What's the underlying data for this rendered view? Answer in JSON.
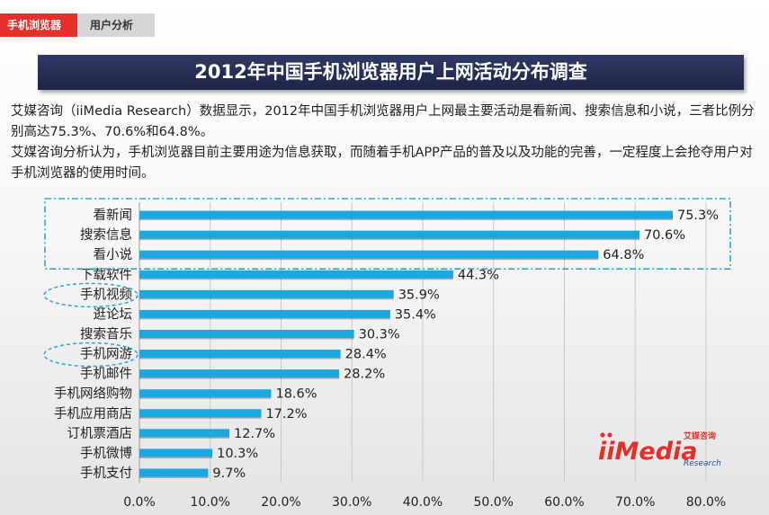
{
  "tabs": [
    "手机浏览器",
    "用户分析"
  ],
  "title": "2012年中国手机浏览器用户上网活动分布调查",
  "description": [
    "艾媒咨询（iiMedia Research）数据显示，2012年中国手机浏览器用户上网最主要活动是看新闻、搜索信息和小说，三者比例分别高达75.3%、70.6%和64.8%。",
    "艾媒咨询分析认为，手机浏览器目前主要用途为信息获取，而随着手机APP产品的普及以及功能的完善，一定程度上会抢夺用户对手机浏览器的使用时间。"
  ],
  "logo": {
    "brand": "iiMedia",
    "cn": "艾媒咨询",
    "sub": "Research"
  },
  "chart_data": {
    "type": "bar",
    "orientation": "horizontal",
    "categories": [
      "看新闻",
      "搜索信息",
      "看小说",
      "下载软件",
      "手机视频",
      "逛论坛",
      "搜索音乐",
      "手机网游",
      "手机邮件",
      "手机网络购物",
      "手机应用商店",
      "订机票酒店",
      "手机微博",
      "手机支付"
    ],
    "values": [
      75.3,
      70.6,
      64.8,
      44.3,
      35.9,
      35.4,
      30.3,
      28.4,
      28.2,
      18.6,
      17.2,
      12.7,
      10.3,
      9.7
    ],
    "value_labels": [
      "75.3%",
      "70.6%",
      "64.8%",
      "44.3%",
      "35.9%",
      "35.4%",
      "30.3%",
      "28.4%",
      "28.2%",
      "18.6%",
      "17.2%",
      "12.7%",
      "10.3%",
      "9.7%"
    ],
    "xlim": [
      0,
      80
    ],
    "xticks": [
      "0.0%",
      "10.0%",
      "20.0%",
      "30.0%",
      "40.0%",
      "50.0%",
      "60.0%",
      "70.0%",
      "80.0%"
    ],
    "grid": true,
    "bar_color": "#1ba8e0",
    "highlight_top_three": true,
    "circled_categories": [
      "手机视频",
      "手机网游"
    ]
  }
}
